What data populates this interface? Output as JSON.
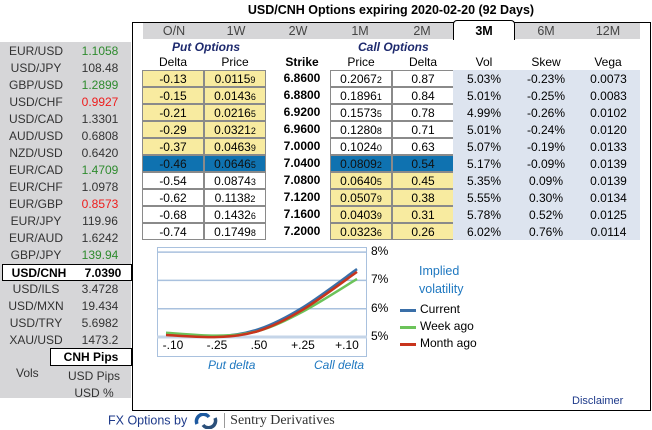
{
  "title": "USD/CNH Options expiring 2020-02-20 (92 Days)",
  "markets": [
    {
      "pair": "EUR/USD",
      "value": "1.1058",
      "color": "#2e8b2e"
    },
    {
      "pair": "USD/JPY",
      "value": "108.48",
      "color": "#333333"
    },
    {
      "pair": "GBP/USD",
      "value": "1.2899",
      "color": "#2e8b2e"
    },
    {
      "pair": "USD/CHF",
      "value": "0.9927",
      "color": "#ee1c1c"
    },
    {
      "pair": "USD/CAD",
      "value": "1.3301",
      "color": "#333333"
    },
    {
      "pair": "AUD/USD",
      "value": "0.6808",
      "color": "#333333"
    },
    {
      "pair": "NZD/USD",
      "value": "0.6420",
      "color": "#333333"
    },
    {
      "pair": "EUR/CAD",
      "value": "1.4709",
      "color": "#2e8b2e"
    },
    {
      "pair": "EUR/CHF",
      "value": "1.0978",
      "color": "#333333"
    },
    {
      "pair": "EUR/GBP",
      "value": "0.8573",
      "color": "#ee1c1c"
    },
    {
      "pair": "EUR/JPY",
      "value": "119.96",
      "color": "#333333"
    },
    {
      "pair": "EUR/AUD",
      "value": "1.6242",
      "color": "#333333"
    },
    {
      "pair": "GBP/JPY",
      "value": "139.94",
      "color": "#2e8b2e"
    },
    {
      "pair": "USD/CNH",
      "value": "7.0390",
      "color": "#000000",
      "selected": true
    },
    {
      "pair": "USD/ILS",
      "value": "3.4728",
      "color": "#333333"
    },
    {
      "pair": "USD/MXN",
      "value": "19.434",
      "color": "#333333"
    },
    {
      "pair": "USD/TRY",
      "value": "5.6982",
      "color": "#333333"
    },
    {
      "pair": "XAU/USD",
      "value": "1473.2",
      "color": "#333333"
    }
  ],
  "units": {
    "vols_label": "Vols",
    "options": [
      "CNH Pips",
      "USD Pips",
      "USD %"
    ],
    "selected": "CNH Pips"
  },
  "tabs": [
    "O/N",
    "1W",
    "2W",
    "1M",
    "2M",
    "3M",
    "6M",
    "12M"
  ],
  "active_tab": "3M",
  "put_title": "Put Options",
  "call_title": "Call Options",
  "headers": {
    "put_delta": "Delta",
    "put_price": "Price",
    "strike": "Strike",
    "call_price": "Price",
    "call_delta": "Delta",
    "vol": "Vol",
    "skew": "Skew",
    "vega": "Vega"
  },
  "rows": [
    {
      "put_delta": "-0.13",
      "put_price": "0.01159",
      "strike": "6.8600",
      "call_price": "0.20672",
      "call_delta": "0.87",
      "vol": "5.03%",
      "skew": "-0.23%",
      "vega": "0.0073"
    },
    {
      "put_delta": "-0.15",
      "put_price": "0.01436",
      "strike": "6.8800",
      "call_price": "0.18961",
      "call_delta": "0.84",
      "vol": "5.01%",
      "skew": "-0.25%",
      "vega": "0.0083"
    },
    {
      "put_delta": "-0.21",
      "put_price": "0.02165",
      "strike": "6.9200",
      "call_price": "0.15735",
      "call_delta": "0.78",
      "vol": "4.99%",
      "skew": "-0.26%",
      "vega": "0.0102"
    },
    {
      "put_delta": "-0.29",
      "put_price": "0.03212",
      "strike": "6.9600",
      "call_price": "0.12808",
      "call_delta": "0.71",
      "vol": "5.01%",
      "skew": "-0.24%",
      "vega": "0.0120"
    },
    {
      "put_delta": "-0.37",
      "put_price": "0.04639",
      "strike": "7.0000",
      "call_price": "0.10240",
      "call_delta": "0.63",
      "vol": "5.07%",
      "skew": "-0.19%",
      "vega": "0.0133"
    },
    {
      "put_delta": "-0.46",
      "put_price": "0.06465",
      "strike": "7.0400",
      "call_price": "0.08092",
      "call_delta": "0.54",
      "vol": "5.17%",
      "skew": "-0.09%",
      "vega": "0.0139",
      "atm": true
    },
    {
      "put_delta": "-0.54",
      "put_price": "0.08743",
      "strike": "7.0800",
      "call_price": "0.06405",
      "call_delta": "0.45",
      "vol": "5.35%",
      "skew": "0.09%",
      "vega": "0.0139"
    },
    {
      "put_delta": "-0.62",
      "put_price": "0.11382",
      "strike": "7.1200",
      "call_price": "0.05079",
      "call_delta": "0.38",
      "vol": "5.55%",
      "skew": "0.30%",
      "vega": "0.0134"
    },
    {
      "put_delta": "-0.68",
      "put_price": "0.14326",
      "strike": "7.1600",
      "call_price": "0.04039",
      "call_delta": "0.31",
      "vol": "5.78%",
      "skew": "0.52%",
      "vega": "0.0125"
    },
    {
      "put_delta": "-0.74",
      "put_price": "0.17498",
      "strike": "7.2000",
      "call_price": "0.03236",
      "call_delta": "0.26",
      "vol": "6.02%",
      "skew": "0.76%",
      "vega": "0.0114"
    }
  ],
  "colors": {
    "itm": "#f8eba0",
    "atm": "#0f72b0",
    "vol_bg": "#dde4ef",
    "accent": "#1f78c0"
  },
  "chart_data": {
    "type": "line",
    "categories": [
      "-.10",
      "-.25",
      ".50",
      "+.25",
      "+.10"
    ],
    "y_ticks": [
      "5%",
      "6%",
      "7%",
      "8%"
    ],
    "ylim": [
      5,
      8
    ],
    "xlabel_left": "Put delta",
    "xlabel_right": "Call delta",
    "legend_title": [
      "Implied",
      "volatility"
    ],
    "legend_position": "right",
    "grid": true,
    "series": [
      {
        "name": "Current",
        "color": "#3a6fa8",
        "values": [
          5.12,
          5.02,
          5.28,
          6.05,
          7.4
        ]
      },
      {
        "name": "Week ago",
        "color": "#6cc35a",
        "values": [
          5.15,
          5.05,
          5.22,
          5.9,
          7.05
        ]
      },
      {
        "name": "Month ago",
        "color": "#c8341c",
        "values": [
          5.07,
          5.0,
          5.22,
          5.97,
          7.3
        ]
      }
    ]
  },
  "disclaimer": "Disclaimer",
  "footer": {
    "prefix": "FX Options by",
    "brand": "Sentry Derivatives"
  }
}
